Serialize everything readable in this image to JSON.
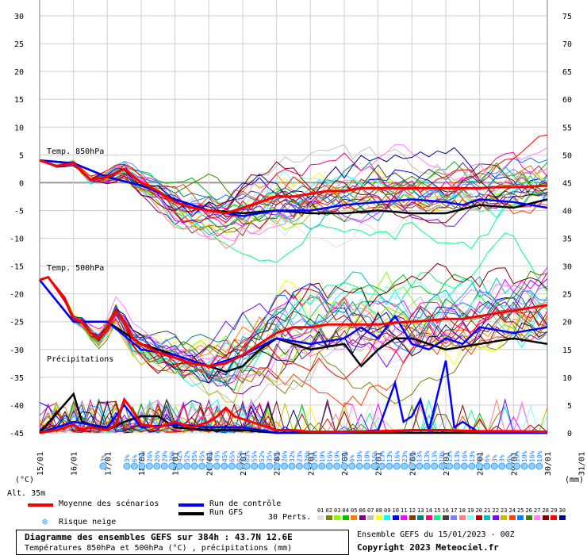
{
  "chart_data": {
    "type": "line",
    "title": "Diagramme des ensembles GEFS sur 384h : 43.7N 12.6E",
    "subtitle": "Températures 850hPa et 500hPa (°C) , précipitations (mm)",
    "y_left_ticks": [
      "30",
      "25",
      "20",
      "15",
      "10",
      "5",
      "0",
      "-5",
      "-10",
      "-15",
      "-20",
      "-25",
      "-30",
      "-35",
      "-40",
      "-45"
    ],
    "y_left_range": [
      -45,
      30
    ],
    "y_left_unit": "(°C)",
    "y_right_ticks": [
      "75",
      "70",
      "65",
      "60",
      "55",
      "50",
      "45",
      "40",
      "35",
      "30",
      "25",
      "20",
      "15",
      "10",
      "5",
      "0"
    ],
    "y_right_range": [
      0,
      75
    ],
    "y_right_unit": "(mm)",
    "x_ticks": [
      "16/01",
      "17/01",
      "18/01",
      "19/01",
      "20/01",
      "21/01",
      "22/01",
      "23/01",
      "24/01",
      "25/01",
      "26/01",
      "27/01",
      "28/01",
      "29/01",
      "30/01",
      "31/01"
    ],
    "x_corner_label": "15/01",
    "annotations": {
      "t850": "Temp. 850hPa",
      "t500": "Temp. 500hPa",
      "precip": "Précipitations",
      "altitude": "Alt. 35m"
    },
    "snow_risk_percent": [
      "3%",
      "3%",
      "6%",
      "26%",
      "26%",
      "26%",
      "29%",
      "26%",
      "42%",
      "52%",
      "35%",
      "45%",
      "45%",
      "45%",
      "45%",
      "65%",
      "65%",
      "65%",
      "55%",
      "52%",
      "35%",
      "32%",
      "26%",
      "32%",
      "23%",
      "26%",
      "26%",
      "19%",
      "16%",
      "19%",
      "19%",
      "6%",
      "10%",
      "10%",
      "16%",
      "13%",
      "13%",
      "16%",
      "23%",
      "29%",
      "13%",
      "13%",
      "13%",
      "19%",
      "13%",
      "13%",
      "16%",
      "13%",
      "6%",
      "6%",
      "3%",
      "3%",
      "6%",
      "10%",
      "10%",
      "16%",
      "10%"
    ],
    "series": [
      {
        "name": "Moyenne des scénarios",
        "role": "mean_t850",
        "color": "#ff0000",
        "values": [
          [
            0,
            4
          ],
          [
            0.5,
            3
          ],
          [
            1,
            3.5
          ],
          [
            1.5,
            0.5
          ],
          [
            2,
            1
          ],
          [
            2.5,
            2.5
          ],
          [
            3,
            0
          ],
          [
            3.5,
            -1.5
          ],
          [
            4,
            -3.5
          ],
          [
            4.5,
            -4.5
          ],
          [
            5,
            -5
          ],
          [
            5.5,
            -5.5
          ],
          [
            6,
            -4.5
          ],
          [
            6.5,
            -3.5
          ],
          [
            7,
            -2.5
          ],
          [
            7.5,
            -2.5
          ],
          [
            8,
            -2
          ],
          [
            8.5,
            -1.5
          ],
          [
            9,
            -1.5
          ],
          [
            9.5,
            -1
          ],
          [
            10,
            -1
          ],
          [
            10.5,
            -1
          ],
          [
            11,
            -1
          ],
          [
            11.5,
            -1
          ],
          [
            12,
            -1
          ],
          [
            12.5,
            -1
          ],
          [
            13,
            -1
          ],
          [
            13.5,
            -0.8
          ],
          [
            14,
            -0.8
          ],
          [
            14.5,
            -0.7
          ],
          [
            15,
            -0.5
          ]
        ]
      },
      {
        "name": "Moyenne des scénarios",
        "role": "mean_t500",
        "color": "#ff0000",
        "values": [
          [
            0,
            -17.5
          ],
          [
            0.25,
            -17
          ],
          [
            0.5,
            -19
          ],
          [
            0.75,
            -21
          ],
          [
            1,
            -24.5
          ],
          [
            1.25,
            -25
          ],
          [
            1.5,
            -27
          ],
          [
            1.75,
            -28
          ],
          [
            2,
            -26
          ],
          [
            2.25,
            -23
          ],
          [
            2.5,
            -25
          ],
          [
            2.75,
            -28
          ],
          [
            3,
            -29
          ],
          [
            3.5,
            -30.5
          ],
          [
            4,
            -31.5
          ],
          [
            4.5,
            -32.5
          ],
          [
            5,
            -33
          ],
          [
            5.5,
            -32.5
          ],
          [
            6,
            -31
          ],
          [
            6.5,
            -29
          ],
          [
            7,
            -27
          ],
          [
            7.5,
            -26
          ],
          [
            8,
            -26
          ],
          [
            8.5,
            -25.5
          ],
          [
            9,
            -25.5
          ],
          [
            9.5,
            -25.5
          ],
          [
            10,
            -25.5
          ],
          [
            10.5,
            -25.2
          ],
          [
            11,
            -25
          ],
          [
            11.5,
            -24.8
          ],
          [
            12,
            -24.5
          ],
          [
            12.5,
            -24.5
          ],
          [
            13,
            -24
          ],
          [
            13.5,
            -23.5
          ],
          [
            14,
            -23
          ],
          [
            14.5,
            -22.5
          ],
          [
            15,
            -22
          ]
        ]
      },
      {
        "name": "Moyenne des scénarios",
        "role": "mean_precip",
        "color": "#ff0000",
        "values": [
          [
            0,
            0
          ],
          [
            0.5,
            0.5
          ],
          [
            1,
            1.5
          ],
          [
            1.25,
            0.5
          ],
          [
            1.5,
            1
          ],
          [
            2,
            0.5
          ],
          [
            2.25,
            1.5
          ],
          [
            2.5,
            6
          ],
          [
            2.75,
            4
          ],
          [
            3,
            1.5
          ],
          [
            3.5,
            1
          ],
          [
            4,
            2
          ],
          [
            4.5,
            1
          ],
          [
            5,
            2
          ],
          [
            5.25,
            3
          ],
          [
            5.5,
            4.5
          ],
          [
            5.75,
            3
          ],
          [
            6,
            2.5
          ],
          [
            6.5,
            1.5
          ],
          [
            7,
            0.5
          ],
          [
            7.5,
            0.5
          ],
          [
            8,
            0.2
          ],
          [
            9,
            0.2
          ],
          [
            10,
            0.3
          ],
          [
            11,
            0.5
          ],
          [
            12,
            0.5
          ],
          [
            13,
            0.3
          ],
          [
            14,
            0.3
          ],
          [
            15,
            0.2
          ]
        ]
      },
      {
        "name": "Run de contrôle",
        "role": "control_t850",
        "color": "#0000ff",
        "values": [
          [
            0,
            4
          ],
          [
            1,
            3.5
          ],
          [
            2,
            1
          ],
          [
            3,
            -0.5
          ],
          [
            4,
            -3
          ],
          [
            5,
            -5
          ],
          [
            6,
            -6
          ],
          [
            7,
            -5
          ],
          [
            8,
            -5
          ],
          [
            9,
            -4
          ],
          [
            10,
            -3.5
          ],
          [
            11,
            -3
          ],
          [
            12,
            -3.5
          ],
          [
            12.5,
            -4
          ],
          [
            13,
            -3
          ],
          [
            14,
            -3.5
          ],
          [
            15,
            -4.5
          ]
        ]
      },
      {
        "name": "Run de contrôle",
        "role": "control_t500",
        "color": "#0000ff",
        "values": [
          [
            0,
            -17.5
          ],
          [
            1,
            -25
          ],
          [
            2,
            -25
          ],
          [
            3,
            -30
          ],
          [
            4,
            -31
          ],
          [
            5,
            -33
          ],
          [
            6,
            -31
          ],
          [
            7,
            -28
          ],
          [
            8,
            -29
          ],
          [
            9,
            -28
          ],
          [
            9.5,
            -26
          ],
          [
            10,
            -28
          ],
          [
            10.5,
            -24
          ],
          [
            11,
            -29
          ],
          [
            11.5,
            -30
          ],
          [
            12,
            -28
          ],
          [
            12.5,
            -29
          ],
          [
            13,
            -26
          ],
          [
            14,
            -27
          ],
          [
            15,
            -26
          ]
        ]
      },
      {
        "name": "Run de contrôle",
        "role": "control_precip",
        "color": "#0000ff",
        "values": [
          [
            0,
            0
          ],
          [
            1,
            2
          ],
          [
            2,
            1
          ],
          [
            2.5,
            5
          ],
          [
            3,
            1
          ],
          [
            4,
            1.5
          ],
          [
            5,
            1
          ],
          [
            6,
            1
          ],
          [
            7,
            0
          ],
          [
            8,
            0.2
          ],
          [
            9,
            0
          ],
          [
            10,
            0.5
          ],
          [
            10.5,
            9
          ],
          [
            10.75,
            2
          ],
          [
            11,
            3
          ],
          [
            11.25,
            6
          ],
          [
            11.5,
            0.5
          ],
          [
            12,
            13
          ],
          [
            12.25,
            1
          ],
          [
            12.5,
            2
          ],
          [
            13,
            0
          ],
          [
            14,
            0
          ],
          [
            15,
            0
          ]
        ]
      },
      {
        "name": "Run GFS",
        "role": "gfs_t850",
        "color": "#000000",
        "values": [
          [
            0,
            4
          ],
          [
            1,
            3.5
          ],
          [
            2,
            1
          ],
          [
            3,
            -0.5
          ],
          [
            4,
            -3
          ],
          [
            5,
            -5
          ],
          [
            6,
            -5.5
          ],
          [
            7,
            -5
          ],
          [
            8,
            -5.5
          ],
          [
            9,
            -5.5
          ],
          [
            10,
            -5
          ],
          [
            11,
            -5.5
          ],
          [
            12,
            -5.5
          ],
          [
            13,
            -4
          ],
          [
            14,
            -4.5
          ],
          [
            15,
            -3
          ]
        ]
      },
      {
        "name": "Run GFS",
        "role": "gfs_t500",
        "color": "#000000",
        "values": [
          [
            0,
            -17.5
          ],
          [
            1,
            -25
          ],
          [
            2,
            -25
          ],
          [
            3,
            -29
          ],
          [
            4,
            -31
          ],
          [
            5,
            -33
          ],
          [
            5.5,
            -34
          ],
          [
            6,
            -33
          ],
          [
            6.5,
            -30
          ],
          [
            7,
            -28
          ],
          [
            7.5,
            -29
          ],
          [
            8,
            -30
          ],
          [
            9,
            -29
          ],
          [
            9.5,
            -33
          ],
          [
            10,
            -30
          ],
          [
            10.5,
            -28
          ],
          [
            11,
            -28
          ],
          [
            12,
            -30
          ],
          [
            13,
            -29
          ],
          [
            14,
            -28
          ],
          [
            15,
            -29
          ]
        ]
      },
      {
        "name": "Run GFS",
        "role": "gfs_precip",
        "color": "#000000",
        "values": [
          [
            0,
            0
          ],
          [
            1,
            7
          ],
          [
            1.25,
            2
          ],
          [
            2,
            0.5
          ],
          [
            2.5,
            2
          ],
          [
            3,
            3
          ],
          [
            3.5,
            3
          ],
          [
            4,
            1
          ],
          [
            5,
            0.5
          ],
          [
            6,
            0.5
          ],
          [
            7,
            0
          ],
          [
            8,
            0
          ],
          [
            9,
            0
          ],
          [
            10,
            0
          ],
          [
            11,
            0
          ],
          [
            12,
            0
          ],
          [
            13,
            0
          ],
          [
            14,
            0
          ],
          [
            15,
            0
          ]
        ]
      }
    ],
    "perturbation_colors": [
      "#e0e0e0",
      "#808000",
      "#80ff00",
      "#00c000",
      "#ff8000",
      "#800080",
      "#c0c0c0",
      "#ffff00",
      "#00ffff",
      "#0000ff",
      "#ff00ff",
      "#804000",
      "#008080",
      "#ff0080",
      "#00ff80",
      "#404040",
      "#8080ff",
      "#ff8080",
      "#80ffff",
      "#c00000",
      "#00c0c0",
      "#8000ff",
      "#c0c000",
      "#ff4000",
      "#0080ff",
      "#408000",
      "#ff80ff",
      "#800000",
      "#ff0000",
      "#000080"
    ]
  },
  "legend": {
    "mean": "Moyenne des scénarios",
    "control": "Run de contrôle",
    "gfs": "Run GFS",
    "snow": "Risque neige",
    "perts_label": "30 Perts.",
    "pert_numbers": [
      "01",
      "02",
      "03",
      "04",
      "05",
      "06",
      "07",
      "08",
      "09",
      "10",
      "11",
      "12",
      "13",
      "14",
      "15",
      "16",
      "17",
      "18",
      "19",
      "20",
      "21",
      "22",
      "23",
      "24",
      "25",
      "26",
      "27",
      "28",
      "29",
      "30"
    ]
  },
  "footer": {
    "run_info": "Ensemble GEFS du 15/01/2023 - 00Z",
    "copyright": "Copyright 2023 Meteociel.fr"
  }
}
